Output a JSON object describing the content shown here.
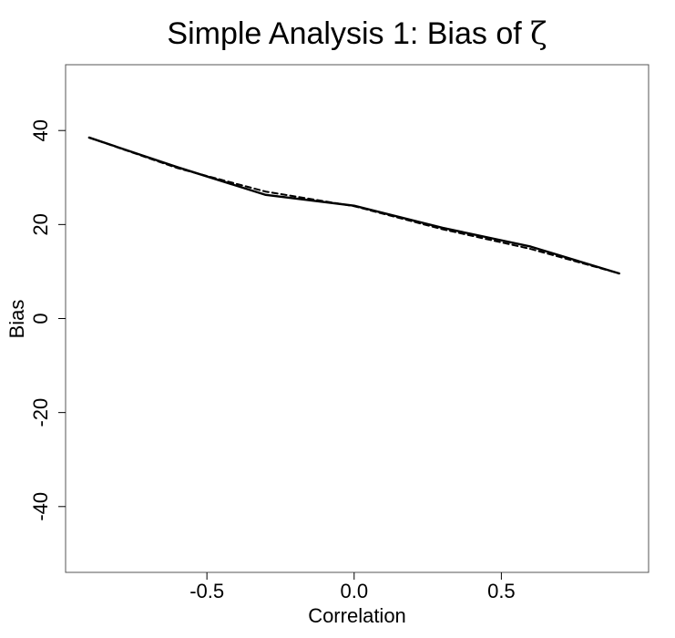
{
  "chart_data": {
    "type": "line",
    "title": "Simple Analysis 1: Bias of ",
    "title_symbol": "ζ",
    "xlabel": "Correlation",
    "ylabel": "Bias",
    "xlim": [
      -0.98,
      1.0
    ],
    "ylim": [
      -54,
      54
    ],
    "x_ticks": [
      -0.5,
      0.0,
      0.5
    ],
    "x_tick_labels": [
      "-0.5",
      "0.0",
      "0.5"
    ],
    "y_ticks": [
      -40,
      -20,
      0,
      20,
      40
    ],
    "y_tick_labels": [
      "-40",
      "-20",
      "0",
      "20",
      "40"
    ],
    "grid": false,
    "series": [
      {
        "style": "solid",
        "color": "#000000",
        "x": [
          -0.9,
          -0.6,
          -0.3,
          0.0,
          0.3,
          0.6,
          0.9
        ],
        "y": [
          38.5,
          32.2,
          26.3,
          24.0,
          19.3,
          15.3,
          9.6
        ]
      },
      {
        "style": "dashed",
        "color": "#000000",
        "x": [
          -0.9,
          -0.6,
          -0.3,
          0.0,
          0.3,
          0.6,
          0.9
        ],
        "y": [
          38.5,
          32.0,
          27.0,
          23.9,
          19.0,
          14.8,
          9.6
        ]
      }
    ]
  }
}
